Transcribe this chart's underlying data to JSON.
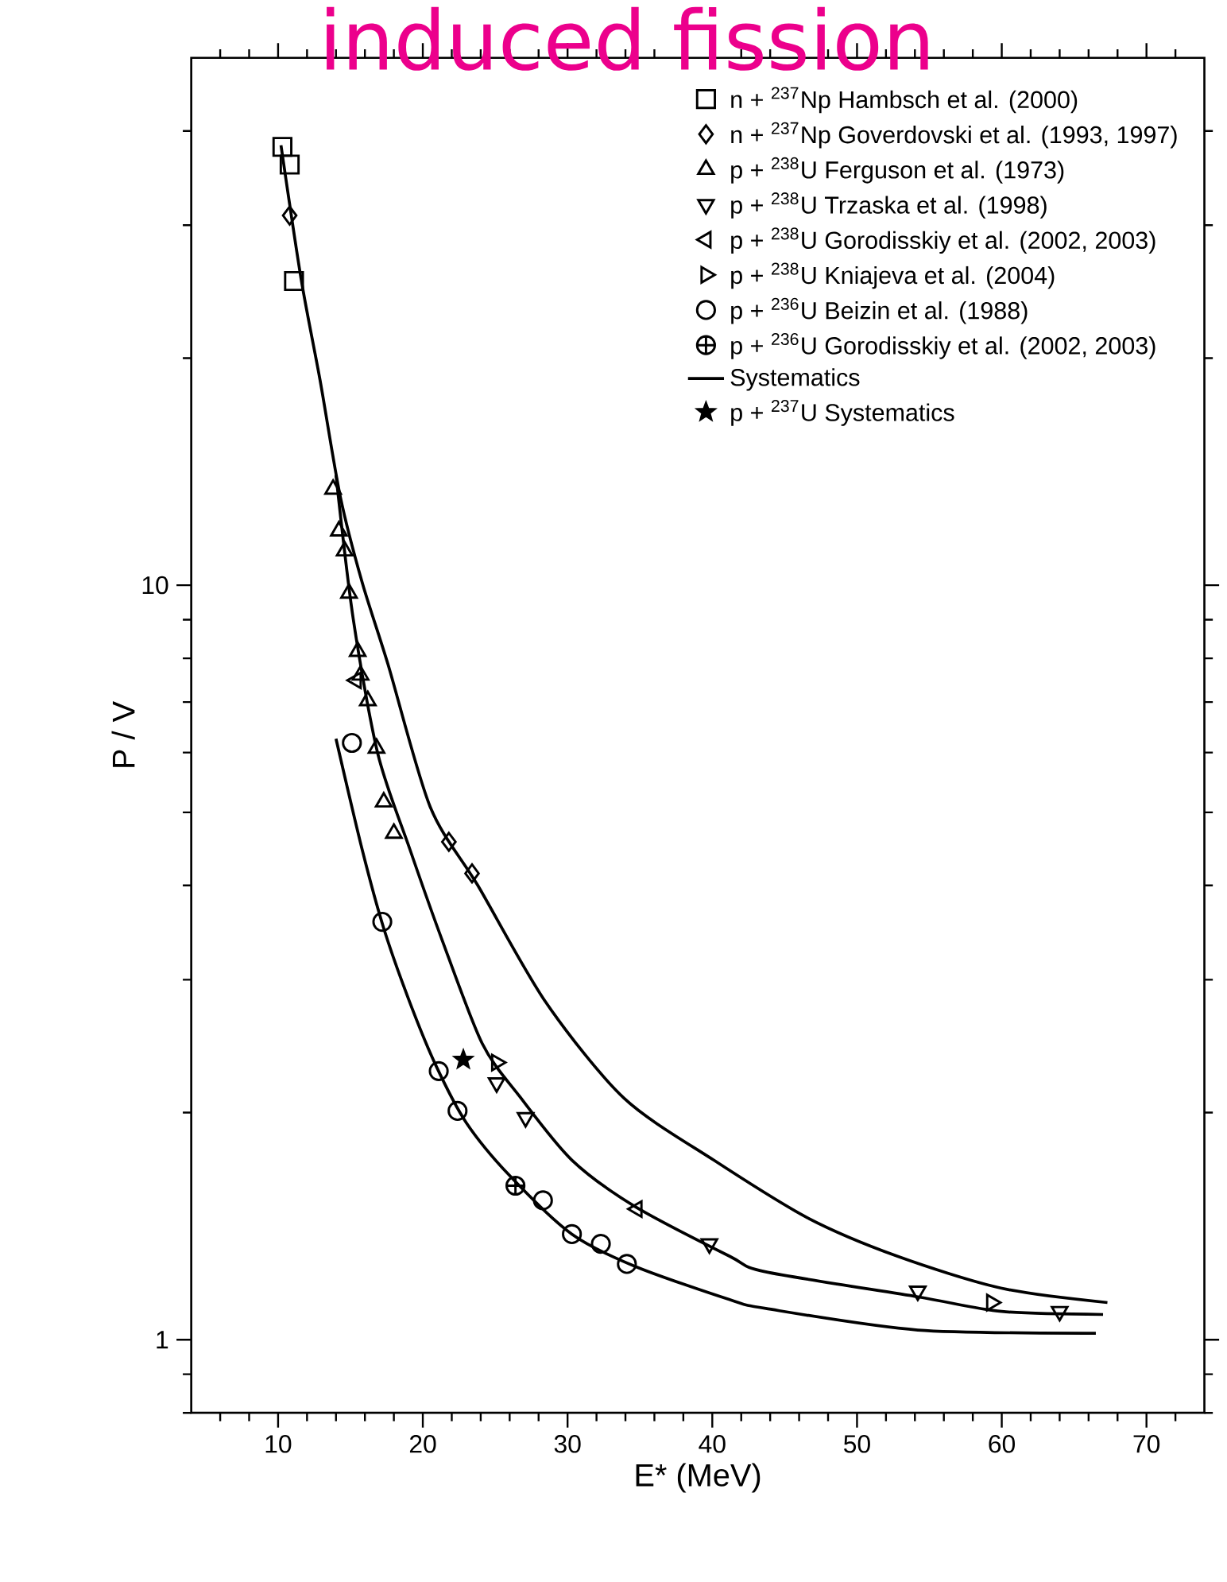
{
  "chart_data": {
    "type": "scatter",
    "title": "induced fission",
    "xlabel": "E* (MeV)",
    "ylabel": "P / V",
    "log": "y",
    "legend": "top right",
    "xlim": [
      4,
      74
    ],
    "ylim": [
      0.8,
      50
    ],
    "xticks": [
      {
        "value": 6,
        "label": null
      },
      {
        "value": 8,
        "label": null
      },
      10,
      {
        "value": 12,
        "label": null
      },
      {
        "value": 14,
        "label": null
      },
      {
        "value": 16,
        "label": null
      },
      {
        "value": 18,
        "label": null
      },
      20,
      {
        "value": 22,
        "label": null
      },
      {
        "value": 24,
        "label": null
      },
      {
        "value": 26,
        "label": null
      },
      {
        "value": 28,
        "label": null
      },
      30,
      {
        "value": 32,
        "label": null
      },
      {
        "value": 34,
        "label": null
      },
      {
        "value": 36,
        "label": null
      },
      {
        "value": 38,
        "label": null
      },
      40,
      {
        "value": 42,
        "label": null
      },
      {
        "value": 44,
        "label": null
      },
      {
        "value": 46,
        "label": null
      },
      {
        "value": 48,
        "label": null
      },
      50,
      {
        "value": 52,
        "label": null
      },
      {
        "value": 54,
        "label": null
      },
      {
        "value": 56,
        "label": null
      },
      {
        "value": 58,
        "label": null
      },
      60,
      {
        "value": 62,
        "label": null
      },
      {
        "value": 64,
        "label": null
      },
      {
        "value": 66,
        "label": null
      },
      {
        "value": 68,
        "label": null
      },
      70,
      {
        "value": 72,
        "label": null
      }
    ],
    "yticks": [
      {
        "value": 0.8,
        "label": null
      },
      {
        "value": 0.9,
        "label": null
      },
      1,
      {
        "value": 2,
        "label": null
      },
      {
        "value": 3,
        "label": null
      },
      {
        "value": 4,
        "label": null
      },
      {
        "value": 5,
        "label": null
      },
      {
        "value": 6,
        "label": null
      },
      {
        "value": 7,
        "label": null
      },
      {
        "value": 8,
        "label": null
      },
      {
        "value": 9,
        "label": null
      },
      10,
      {
        "value": 20,
        "label": null
      },
      {
        "value": 30,
        "label": null
      },
      {
        "value": 40,
        "label": null
      }
    ],
    "series": [
      {
        "name": "n + $^{237}$Np  Hambsch et al. (2000)",
        "type": "scatter",
        "marker": "square",
        "color": "#000000",
        "x": [
          10.3,
          10.8,
          11.1
        ],
        "values": [
          38.1,
          36.1,
          25.3
        ]
      },
      {
        "name": "n + $^{237}$Np  Goverdovski et al. (1993, 1997)",
        "type": "scatter",
        "marker": "diamond",
        "color": "#000000",
        "x": [
          10.8,
          21.8,
          23.4
        ],
        "values": [
          30.9,
          4.57,
          4.15
        ]
      },
      {
        "name": "p + $^{238}$U  Ferguson et al. (1973)",
        "type": "scatter",
        "marker": "triangle",
        "color": "#000000",
        "x": [
          13.8,
          14.2,
          14.6,
          14.9,
          15.5,
          15.7,
          16.2,
          16.8,
          17.3,
          18.0
        ],
        "values": [
          13.4,
          11.8,
          11.1,
          9.76,
          8.17,
          7.6,
          7.03,
          6.08,
          5.16,
          4.69
        ]
      },
      {
        "name": "p + $^{238}$U  Trzaska et al. (1998)",
        "type": "scatter",
        "marker": "triangle-down",
        "color": "#000000",
        "x": [
          25.1,
          27.1,
          39.8,
          54.2,
          64.0
        ],
        "values": [
          2.19,
          1.97,
          1.34,
          1.16,
          1.09
        ]
      },
      {
        "name": "p + $^{238}$U  Gorodisskiy et al. (2002, 2003)",
        "type": "scatter",
        "marker": "triangle-left",
        "color": "#000000",
        "x": [
          15.4,
          34.8
        ],
        "values": [
          7.48,
          1.49
        ]
      },
      {
        "name": "p + $^{238}$U  Kniajeva et al. (2004)",
        "type": "scatter",
        "marker": "triangle-right",
        "color": "#000000",
        "x": [
          25.1,
          59.3
        ],
        "values": [
          2.33,
          1.12
        ]
      },
      {
        "name": "p + $^{236}$U  Beizin et al. (1988)",
        "type": "scatter",
        "marker": "circle",
        "color": "#000000",
        "x": [
          15.1,
          17.2,
          21.1,
          22.4,
          28.3,
          30.3,
          32.3,
          34.1
        ],
        "values": [
          6.18,
          3.58,
          2.27,
          2.01,
          1.53,
          1.38,
          1.34,
          1.26
        ]
      },
      {
        "name": "p + $^{236}$U  Gorodisskiy et al. (2002, 2003)",
        "type": "scatter",
        "marker": "cross",
        "color": "#000000",
        "x": [
          26.4
        ],
        "values": [
          1.6
        ]
      },
      {
        "name": "Systematics",
        "type": "line",
        "marker": "none",
        "color": "#000000",
        "x": [
          10.2,
          11.6,
          12.9,
          14.3,
          15.8,
          17.6,
          20.5,
          23.8,
          28.5,
          33.9,
          40.1,
          46.6,
          52.8,
          60.0,
          67.3
        ],
        "values": [
          38.3,
          25.4,
          18.7,
          13.1,
          10.1,
          7.85,
          5.09,
          4.0,
          2.8,
          2.09,
          1.73,
          1.45,
          1.29,
          1.17,
          1.12
        ]
      },
      {
        "name": "p + $^{237}$U  Systematics",
        "type": "scatter",
        "marker": "star",
        "color": "#000000",
        "x": [
          22.8
        ],
        "values": [
          2.35
        ]
      },
      {
        "type": "line",
        "marker": "none",
        "color": "#000000",
        "x": [
          14.0,
          15.2,
          16.9,
          19.1,
          21.3,
          24.1,
          26.7,
          30.3,
          34.7,
          41.2,
          43.7,
          54.2,
          60.0,
          67.0
        ],
        "values": [
          14.0,
          9.0,
          5.97,
          4.47,
          3.4,
          2.47,
          2.1,
          1.73,
          1.5,
          1.29,
          1.23,
          1.14,
          1.09,
          1.08
        ]
      },
      {
        "type": "line",
        "marker": "none",
        "color": "#000000",
        "x": [
          14.0,
          15.8,
          17.3,
          19.1,
          20.9,
          23.0,
          26.0,
          30.3,
          34.7,
          41.2,
          43.7,
          54.2,
          66.5
        ],
        "values": [
          6.26,
          4.47,
          3.51,
          2.8,
          2.31,
          1.94,
          1.65,
          1.38,
          1.25,
          1.13,
          1.1,
          1.03,
          1.02
        ]
      }
    ]
  }
}
